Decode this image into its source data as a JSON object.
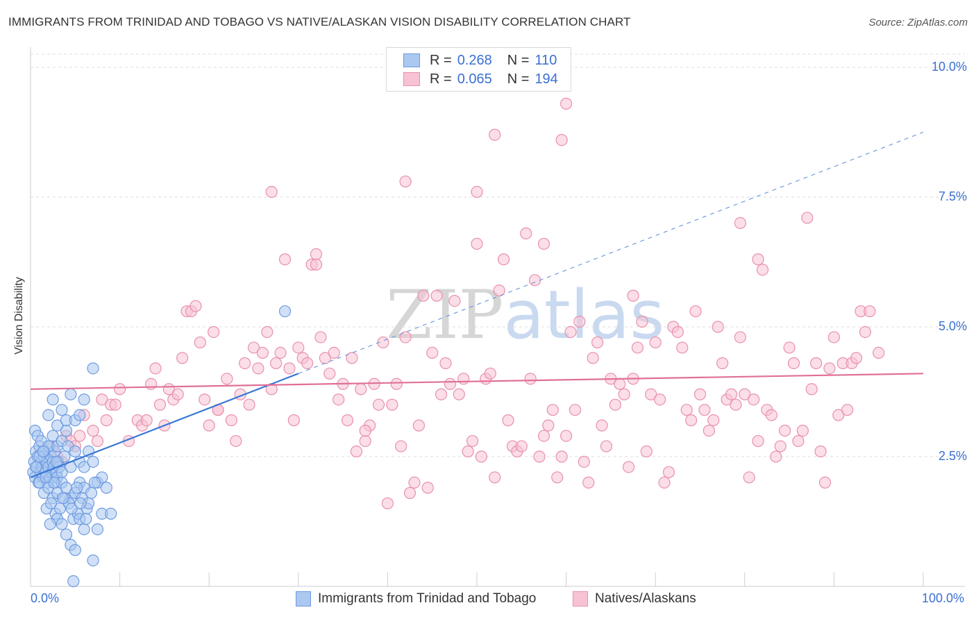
{
  "title": "IMMIGRANTS FROM TRINIDAD AND TOBAGO VS NATIVE/ALASKAN VISION DISABILITY CORRELATION CHART",
  "source": "Source: ZipAtlas.com",
  "watermark": {
    "zip": "ZIP",
    "atlas": "atlas"
  },
  "legend": {
    "rows": [
      {
        "r_label": "R =",
        "r_value": "0.268",
        "n_label": "N =",
        "n_value": "110",
        "color": "#aac8f0",
        "border": "#6f9be0"
      },
      {
        "r_label": "R =",
        "r_value": "0.065",
        "n_label": "N =",
        "n_value": "194",
        "color": "#f7c3d4",
        "border": "#e890ad"
      }
    ]
  },
  "bottom_legend": {
    "blue": "Immigrants from Trinidad and Tobago",
    "pink": "Natives/Alaskans"
  },
  "chart_data": {
    "type": "scatter",
    "title": "IMMIGRANTS FROM TRINIDAD AND TOBAGO VS NATIVE/ALASKAN VISION DISABILITY CORRELATION CHART",
    "xlabel": "",
    "ylabel": "Vision Disability",
    "xlim": [
      0,
      100
    ],
    "ylim": [
      0,
      10
    ],
    "x_tick_labels": [
      "0.0%",
      "100.0%"
    ],
    "y_tick_labels": [
      "2.5%",
      "5.0%",
      "7.5%",
      "10.0%"
    ],
    "y_ticks": [
      2.5,
      5.0,
      7.5,
      10.0
    ],
    "grid": true,
    "legend_position": "top-center",
    "series": [
      {
        "name": "Immigrants from Trinidad and Tobago",
        "color": "#6f9be0",
        "fill": "#aac8f0",
        "trend": {
          "x": [
            0,
            30
          ],
          "y": [
            2.1,
            4.1
          ],
          "color": "#3a78d6",
          "dashed_extension": {
            "x": [
              30,
              100
            ],
            "y": [
              4.1,
              8.75
            ]
          }
        },
        "points": [
          [
            0.3,
            2.2
          ],
          [
            0.4,
            2.4
          ],
          [
            0.5,
            2.1
          ],
          [
            0.6,
            2.6
          ],
          [
            0.7,
            2.3
          ],
          [
            0.8,
            2.5
          ],
          [
            0.9,
            2.0
          ],
          [
            1.0,
            2.7
          ],
          [
            1.1,
            2.2
          ],
          [
            1.2,
            2.4
          ],
          [
            1.3,
            2.3
          ],
          [
            1.4,
            2.1
          ],
          [
            1.5,
            2.5
          ],
          [
            1.6,
            2.6
          ],
          [
            1.7,
            2.2
          ],
          [
            1.8,
            2.4
          ],
          [
            1.9,
            2.0
          ],
          [
            2.0,
            2.3
          ],
          [
            2.1,
            2.7
          ],
          [
            2.2,
            2.1
          ],
          [
            2.3,
            2.5
          ],
          [
            2.4,
            2.2
          ],
          [
            2.5,
            2.4
          ],
          [
            2.6,
            2.3
          ],
          [
            2.7,
            2.6
          ],
          [
            2.8,
            2.0
          ],
          [
            2.9,
            2.2
          ],
          [
            3.0,
            2.1
          ],
          [
            3.1,
            2.4
          ],
          [
            3.2,
            2.3
          ],
          [
            0.5,
            3.0
          ],
          [
            0.8,
            2.9
          ],
          [
            1.2,
            2.8
          ],
          [
            1.5,
            2.6
          ],
          [
            2.0,
            2.7
          ],
          [
            2.5,
            2.9
          ],
          [
            3.0,
            2.7
          ],
          [
            3.5,
            2.8
          ],
          [
            4.0,
            3.0
          ],
          [
            1.0,
            2.0
          ],
          [
            1.5,
            1.8
          ],
          [
            2.0,
            1.9
          ],
          [
            2.5,
            1.7
          ],
          [
            3.0,
            1.8
          ],
          [
            3.5,
            2.0
          ],
          [
            4.0,
            1.9
          ],
          [
            4.5,
            1.7
          ],
          [
            5.0,
            1.8
          ],
          [
            5.5,
            2.0
          ],
          [
            6.0,
            1.9
          ],
          [
            1.8,
            1.5
          ],
          [
            2.3,
            1.6
          ],
          [
            2.8,
            1.4
          ],
          [
            3.3,
            1.5
          ],
          [
            3.8,
            1.7
          ],
          [
            4.3,
            1.6
          ],
          [
            4.8,
            1.3
          ],
          [
            5.3,
            1.4
          ],
          [
            5.8,
            1.7
          ],
          [
            6.3,
            1.5
          ],
          [
            2.0,
            3.3
          ],
          [
            2.5,
            3.6
          ],
          [
            3.0,
            3.1
          ],
          [
            3.5,
            3.4
          ],
          [
            4.0,
            3.2
          ],
          [
            4.5,
            3.7
          ],
          [
            5.0,
            3.2
          ],
          [
            5.5,
            3.3
          ],
          [
            6.0,
            3.6
          ],
          [
            4.2,
            2.7
          ],
          [
            5.0,
            2.6
          ],
          [
            5.5,
            2.4
          ],
          [
            6.0,
            2.3
          ],
          [
            6.5,
            2.6
          ],
          [
            7.0,
            2.4
          ],
          [
            7.5,
            2.0
          ],
          [
            8.0,
            2.1
          ],
          [
            8.5,
            1.9
          ],
          [
            3.0,
            1.3
          ],
          [
            3.5,
            1.2
          ],
          [
            4.0,
            1.0
          ],
          [
            4.5,
            0.8
          ],
          [
            5.0,
            0.7
          ],
          [
            5.5,
            1.3
          ],
          [
            6.0,
            1.1
          ],
          [
            6.5,
            1.6
          ],
          [
            7.0,
            0.5
          ],
          [
            7.5,
            1.1
          ],
          [
            8.0,
            1.4
          ],
          [
            9.0,
            1.4
          ],
          [
            7.0,
            4.2
          ],
          [
            4.8,
            0.1
          ],
          [
            28.5,
            5.3
          ],
          [
            3.5,
            2.2
          ],
          [
            4.5,
            2.3
          ],
          [
            2.2,
            1.2
          ],
          [
            1.0,
            2.5
          ],
          [
            0.6,
            2.3
          ],
          [
            1.4,
            2.6
          ],
          [
            2.6,
            2.0
          ],
          [
            3.8,
            2.5
          ],
          [
            4.6,
            1.5
          ],
          [
            5.2,
            1.9
          ],
          [
            6.8,
            1.8
          ],
          [
            7.2,
            2.0
          ],
          [
            3.6,
            1.7
          ],
          [
            1.7,
            2.1
          ],
          [
            2.9,
            2.4
          ],
          [
            5.6,
            1.6
          ],
          [
            6.2,
            1.3
          ]
        ]
      },
      {
        "name": "Natives/Alaskans",
        "color": "#e890ad",
        "fill": "#f7c3d4",
        "trend": {
          "x": [
            0,
            100
          ],
          "y": [
            3.8,
            4.1
          ],
          "color": "#e06f98"
        },
        "points": [
          [
            2.5,
            2.7
          ],
          [
            3.0,
            2.5
          ],
          [
            3.5,
            2.4
          ],
          [
            4.0,
            2.9
          ],
          [
            4.5,
            2.8
          ],
          [
            5.0,
            2.7
          ],
          [
            5.5,
            2.9
          ],
          [
            6.0,
            3.3
          ],
          [
            7.0,
            3.0
          ],
          [
            7.5,
            2.8
          ],
          [
            8.0,
            3.6
          ],
          [
            8.5,
            3.2
          ],
          [
            9.0,
            3.5
          ],
          [
            9.5,
            3.5
          ],
          [
            10.0,
            3.8
          ],
          [
            11.0,
            2.8
          ],
          [
            12.0,
            3.2
          ],
          [
            12.5,
            3.1
          ],
          [
            13.0,
            3.2
          ],
          [
            13.5,
            3.9
          ],
          [
            14.0,
            4.2
          ],
          [
            14.5,
            3.5
          ],
          [
            15.0,
            3.1
          ],
          [
            15.5,
            3.8
          ],
          [
            16.0,
            3.6
          ],
          [
            16.5,
            3.7
          ],
          [
            17.0,
            4.4
          ],
          [
            17.5,
            5.3
          ],
          [
            18.0,
            5.3
          ],
          [
            18.5,
            5.4
          ],
          [
            19.0,
            4.7
          ],
          [
            19.5,
            3.6
          ],
          [
            20.0,
            3.1
          ],
          [
            20.5,
            4.9
          ],
          [
            21.0,
            3.4
          ],
          [
            22.0,
            4.0
          ],
          [
            22.5,
            3.2
          ],
          [
            23.0,
            2.8
          ],
          [
            23.5,
            3.7
          ],
          [
            24.0,
            4.3
          ],
          [
            24.5,
            3.5
          ],
          [
            25.0,
            4.6
          ],
          [
            25.5,
            4.2
          ],
          [
            26.0,
            4.5
          ],
          [
            26.5,
            4.9
          ],
          [
            27.0,
            3.8
          ],
          [
            27.5,
            4.3
          ],
          [
            28.0,
            4.5
          ],
          [
            29.0,
            4.2
          ],
          [
            29.5,
            3.2
          ],
          [
            30.0,
            4.6
          ],
          [
            30.5,
            4.4
          ],
          [
            31.0,
            4.3
          ],
          [
            31.5,
            6.2
          ],
          [
            32.0,
            6.4
          ],
          [
            32.5,
            4.8
          ],
          [
            33.0,
            4.4
          ],
          [
            33.5,
            4.1
          ],
          [
            34.0,
            4.5
          ],
          [
            34.5,
            3.6
          ],
          [
            35.0,
            3.9
          ],
          [
            35.5,
            3.2
          ],
          [
            36.0,
            4.4
          ],
          [
            36.5,
            2.6
          ],
          [
            37.0,
            3.8
          ],
          [
            37.5,
            2.8
          ],
          [
            38.0,
            3.1
          ],
          [
            38.5,
            3.9
          ],
          [
            39.0,
            3.5
          ],
          [
            39.5,
            4.7
          ],
          [
            40.0,
            1.6
          ],
          [
            40.5,
            3.5
          ],
          [
            41.0,
            3.9
          ],
          [
            41.5,
            2.7
          ],
          [
            42.0,
            4.8
          ],
          [
            42.5,
            1.8
          ],
          [
            43.0,
            2.0
          ],
          [
            43.5,
            3.1
          ],
          [
            44.0,
            5.6
          ],
          [
            44.5,
            1.9
          ],
          [
            45.0,
            4.5
          ],
          [
            45.5,
            5.6
          ],
          [
            46.0,
            3.7
          ],
          [
            46.5,
            4.3
          ],
          [
            47.0,
            3.9
          ],
          [
            47.5,
            5.5
          ],
          [
            48.0,
            3.7
          ],
          [
            48.5,
            4.0
          ],
          [
            49.0,
            2.6
          ],
          [
            49.5,
            2.8
          ],
          [
            50.0,
            6.6
          ],
          [
            50.5,
            2.5
          ],
          [
            51.0,
            4.0
          ],
          [
            51.5,
            4.1
          ],
          [
            52.0,
            2.1
          ],
          [
            52.5,
            5.7
          ],
          [
            53.0,
            6.3
          ],
          [
            53.5,
            3.2
          ],
          [
            54.0,
            2.7
          ],
          [
            54.5,
            2.6
          ],
          [
            55.0,
            2.7
          ],
          [
            55.5,
            6.8
          ],
          [
            56.0,
            4.0
          ],
          [
            56.5,
            5.9
          ],
          [
            57.0,
            2.5
          ],
          [
            57.5,
            2.9
          ],
          [
            58.0,
            3.1
          ],
          [
            58.5,
            3.4
          ],
          [
            59.0,
            2.1
          ],
          [
            59.5,
            2.5
          ],
          [
            60.0,
            2.9
          ],
          [
            60.5,
            4.9
          ],
          [
            61.0,
            3.4
          ],
          [
            61.5,
            5.1
          ],
          [
            62.0,
            2.4
          ],
          [
            62.5,
            2.0
          ],
          [
            63.0,
            4.4
          ],
          [
            63.5,
            4.7
          ],
          [
            64.0,
            3.1
          ],
          [
            64.5,
            2.7
          ],
          [
            65.0,
            4.0
          ],
          [
            65.5,
            3.5
          ],
          [
            66.0,
            3.9
          ],
          [
            66.5,
            3.7
          ],
          [
            67.0,
            2.3
          ],
          [
            67.5,
            4.0
          ],
          [
            68.0,
            4.6
          ],
          [
            68.5,
            5.1
          ],
          [
            69.0,
            2.6
          ],
          [
            69.5,
            3.7
          ],
          [
            70.0,
            4.7
          ],
          [
            70.5,
            3.6
          ],
          [
            71.0,
            2.0
          ],
          [
            71.5,
            2.2
          ],
          [
            72.0,
            5.0
          ],
          [
            72.5,
            4.9
          ],
          [
            73.0,
            4.6
          ],
          [
            73.5,
            3.4
          ],
          [
            74.0,
            3.2
          ],
          [
            74.5,
            5.3
          ],
          [
            75.0,
            3.7
          ],
          [
            75.5,
            3.4
          ],
          [
            76.0,
            3.0
          ],
          [
            76.5,
            3.2
          ],
          [
            77.0,
            5.0
          ],
          [
            77.5,
            4.3
          ],
          [
            78.0,
            3.6
          ],
          [
            78.5,
            3.7
          ],
          [
            79.0,
            3.5
          ],
          [
            79.5,
            4.8
          ],
          [
            80.0,
            3.7
          ],
          [
            80.5,
            2.1
          ],
          [
            81.0,
            3.6
          ],
          [
            81.5,
            2.8
          ],
          [
            82.0,
            6.1
          ],
          [
            82.5,
            3.4
          ],
          [
            83.0,
            3.3
          ],
          [
            83.5,
            2.5
          ],
          [
            84.0,
            2.7
          ],
          [
            84.5,
            3.0
          ],
          [
            85.0,
            4.6
          ],
          [
            85.5,
            4.3
          ],
          [
            86.0,
            2.8
          ],
          [
            86.5,
            3.0
          ],
          [
            87.0,
            7.1
          ],
          [
            87.5,
            3.8
          ],
          [
            88.0,
            4.3
          ],
          [
            88.5,
            2.6
          ],
          [
            89.0,
            2.0
          ],
          [
            89.5,
            4.2
          ],
          [
            90.0,
            4.8
          ],
          [
            90.5,
            3.3
          ],
          [
            91.0,
            4.3
          ],
          [
            91.5,
            3.4
          ],
          [
            92.0,
            4.3
          ],
          [
            92.5,
            4.4
          ],
          [
            93.0,
            5.3
          ],
          [
            93.5,
            4.9
          ],
          [
            94.0,
            5.3
          ],
          [
            95.0,
            4.5
          ],
          [
            21.0,
            3.4
          ],
          [
            37.5,
            3.0
          ],
          [
            60.0,
            9.3
          ],
          [
            59.5,
            8.6
          ],
          [
            52.0,
            8.7
          ],
          [
            42.0,
            7.8
          ],
          [
            50.0,
            7.6
          ],
          [
            27.0,
            7.6
          ],
          [
            79.5,
            7.0
          ],
          [
            81.5,
            6.3
          ],
          [
            28.5,
            6.3
          ],
          [
            32.0,
            6.2
          ],
          [
            67.5,
            5.6
          ],
          [
            57.5,
            6.6
          ]
        ]
      }
    ]
  }
}
